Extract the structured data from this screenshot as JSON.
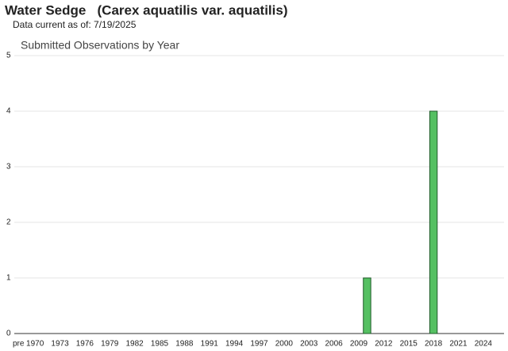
{
  "header": {
    "title": "Water Sedge   (Carex aquatilis var. aquatilis)",
    "subtitle": "Data current as of: 7/19/2025"
  },
  "chart_data": {
    "type": "bar",
    "title": "Submitted Observations by Year",
    "categories": [
      "pre",
      null,
      "1970",
      null,
      null,
      "1973",
      null,
      null,
      "1976",
      null,
      null,
      "1979",
      null,
      null,
      "1982",
      null,
      null,
      "1985",
      null,
      null,
      "1988",
      null,
      null,
      "1991",
      null,
      null,
      "1994",
      null,
      null,
      "1997",
      null,
      null,
      "2000",
      null,
      null,
      "2003",
      null,
      null,
      "2006",
      null,
      null,
      "2009",
      null,
      null,
      "2012",
      null,
      null,
      "2015",
      null,
      null,
      "2018",
      null,
      null,
      "2021",
      null,
      null,
      "2024",
      null,
      null
    ],
    "values": [
      0,
      0,
      0,
      0,
      0,
      0,
      0,
      0,
      0,
      0,
      0,
      0,
      0,
      0,
      0,
      0,
      0,
      0,
      0,
      0,
      0,
      0,
      0,
      0,
      0,
      0,
      0,
      0,
      0,
      0,
      0,
      0,
      0,
      0,
      0,
      0,
      0,
      0,
      0,
      0,
      0,
      0,
      1,
      0,
      0,
      0,
      0,
      0,
      0,
      0,
      4,
      0,
      0,
      0,
      0,
      0,
      0,
      0,
      0
    ],
    "color": "#55c062",
    "ylim": [
      0,
      5
    ],
    "yticks": [
      0,
      1,
      2,
      3,
      4,
      5
    ],
    "grid": true
  }
}
